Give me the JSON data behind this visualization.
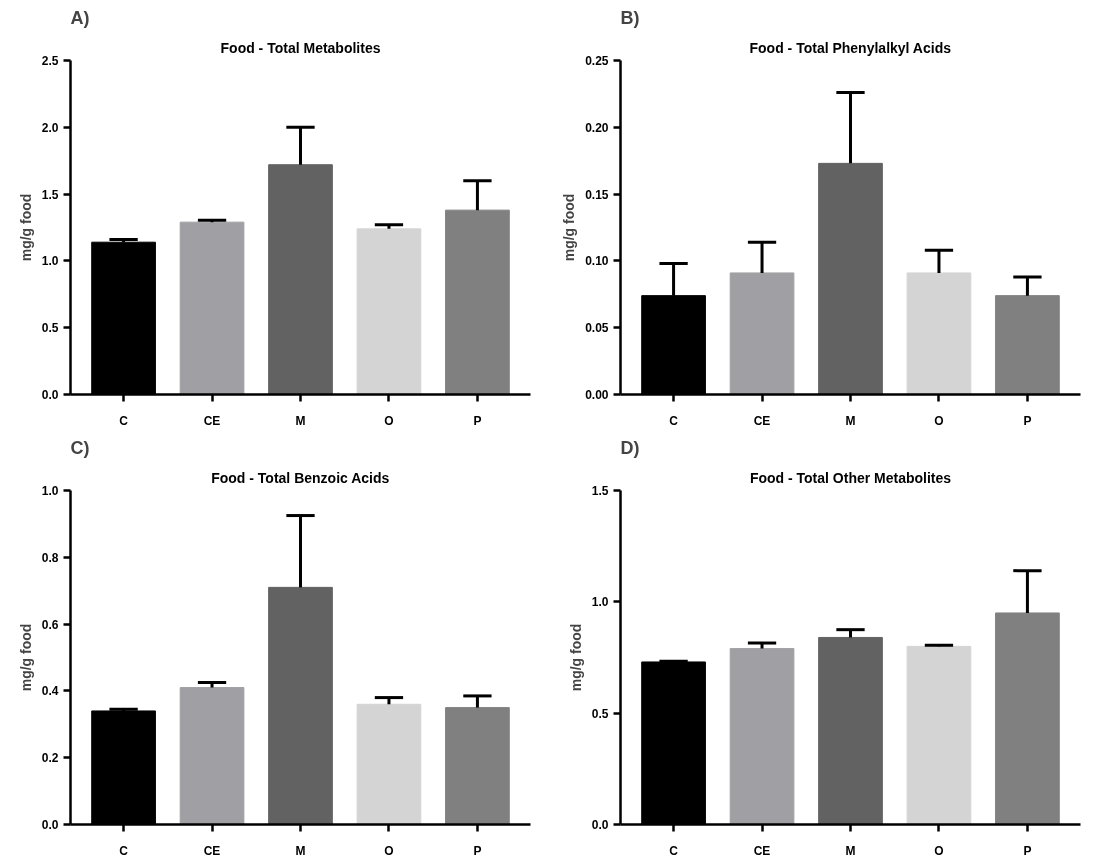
{
  "chart_data": [
    {
      "type": "bar",
      "title": "Food - Total Metabolites",
      "ylabel": "mg/g food",
      "annotations": [
        "A)"
      ],
      "categories": [
        "C",
        "CE",
        "M",
        "O",
        "P"
      ],
      "values": [
        1.14,
        1.29,
        1.72,
        1.24,
        1.38
      ],
      "colors": [
        "#000000",
        "#a0a0a4",
        "#626262",
        "#d4d4d4",
        "#808080"
      ],
      "errors": [
        [
          1.14,
          1.16
        ],
        [
          1.29,
          1.305
        ],
        [
          1.72,
          2.0
        ],
        [
          1.24,
          1.27
        ],
        [
          1.38,
          1.6
        ]
      ],
      "ylim": [
        0,
        2.5
      ],
      "yticks": [
        {
          "value": 0,
          "label": "0.0"
        },
        {
          "value": 0.5,
          "label": "0.5"
        },
        {
          "value": 1,
          "label": "1.0"
        },
        {
          "value": 1.5,
          "label": "1.5"
        },
        {
          "value": 2,
          "label": "2.0"
        },
        {
          "value": 2.5,
          "label": "2.5"
        }
      ],
      "grid": false
    },
    {
      "type": "bar",
      "title": "Food - Total Phenylalkyl Acids",
      "ylabel": "mg/g food",
      "annotations": [
        "B)"
      ],
      "categories": [
        "C",
        "CE",
        "M",
        "O",
        "P"
      ],
      "values": [
        0.074,
        0.091,
        0.173,
        0.091,
        0.074
      ],
      "colors": [
        "#000000",
        "#a0a0a4",
        "#626262",
        "#d4d4d4",
        "#808080"
      ],
      "errors": [
        [
          0.074,
          0.098
        ],
        [
          0.091,
          0.114
        ],
        [
          0.173,
          0.226
        ],
        [
          0.091,
          0.108
        ],
        [
          0.074,
          0.088
        ]
      ],
      "ylim": [
        0,
        0.25
      ],
      "yticks": [
        {
          "value": 0,
          "label": "0.00"
        },
        {
          "value": 0.05,
          "label": "0.05"
        },
        {
          "value": 0.1,
          "label": "0.10"
        },
        {
          "value": 0.15,
          "label": "0.15"
        },
        {
          "value": 0.2,
          "label": "0.20"
        },
        {
          "value": 0.25,
          "label": "0.25"
        }
      ],
      "grid": false
    },
    {
      "type": "bar",
      "title": "Food - Total Benzoic Acids",
      "ylabel": "mg/g food",
      "annotations": [
        "C)"
      ],
      "categories": [
        "C",
        "CE",
        "M",
        "O",
        "P"
      ],
      "values": [
        0.34,
        0.41,
        0.71,
        0.36,
        0.35
      ],
      "colors": [
        "#000000",
        "#a0a0a4",
        "#626262",
        "#d4d4d4",
        "#808080"
      ],
      "errors": [
        [
          0.34,
          0.345
        ],
        [
          0.41,
          0.425
        ],
        [
          0.71,
          0.925
        ],
        [
          0.36,
          0.38
        ],
        [
          0.35,
          0.385
        ]
      ],
      "ylim": [
        0,
        1.0
      ],
      "yticks": [
        {
          "value": 0,
          "label": "0.0"
        },
        {
          "value": 0.2,
          "label": "0.2"
        },
        {
          "value": 0.4,
          "label": "0.4"
        },
        {
          "value": 0.6,
          "label": "0.6"
        },
        {
          "value": 0.8,
          "label": "0.8"
        },
        {
          "value": 1,
          "label": "1.0"
        }
      ],
      "grid": false
    },
    {
      "type": "bar",
      "title": "Food - Total Other Metabolites",
      "ylabel": "mg/g food",
      "annotations": [
        "D)"
      ],
      "categories": [
        "C",
        "CE",
        "M",
        "O",
        "P"
      ],
      "values": [
        0.73,
        0.79,
        0.84,
        0.8,
        0.95
      ],
      "colors": [
        "#000000",
        "#a0a0a4",
        "#626262",
        "#d4d4d4",
        "#808080"
      ],
      "errors": [
        [
          0.73,
          0.733
        ],
        [
          0.79,
          0.815
        ],
        [
          0.84,
          0.875
        ],
        [
          0.8,
          0.805
        ],
        [
          0.95,
          1.14
        ]
      ],
      "ylim": [
        0,
        1.5
      ],
      "yticks": [
        {
          "value": 0,
          "label": "0.0"
        },
        {
          "value": 0.5,
          "label": "0.5"
        },
        {
          "value": 1,
          "label": "1.0"
        },
        {
          "value": 1.5,
          "label": "1.5"
        }
      ],
      "grid": false
    }
  ]
}
